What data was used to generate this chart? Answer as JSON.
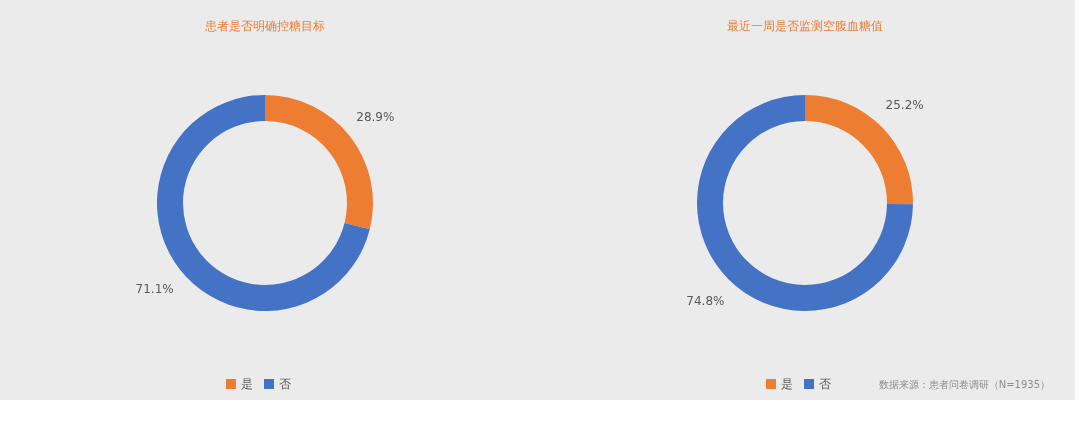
{
  "chart_data": [
    {
      "type": "donut",
      "title": "患者是否明确控糖目标",
      "categories": [
        "是",
        "否"
      ],
      "values": [
        28.9,
        71.1
      ],
      "colors": [
        "#ed7d31",
        "#4472c4"
      ],
      "value_labels": [
        "28.9%",
        "71.1%"
      ],
      "legend": "bottom"
    },
    {
      "type": "donut",
      "title": "最近一周是否监测空腹血糖值",
      "categories": [
        "是",
        "否"
      ],
      "values": [
        25.2,
        74.8
      ],
      "colors": [
        "#ed7d31",
        "#4472c4"
      ],
      "value_labels": [
        "25.2%",
        "74.8%"
      ],
      "legend": "bottom",
      "annotations": [
        "数据来源：患者问卷调研（N=1935）"
      ]
    }
  ]
}
